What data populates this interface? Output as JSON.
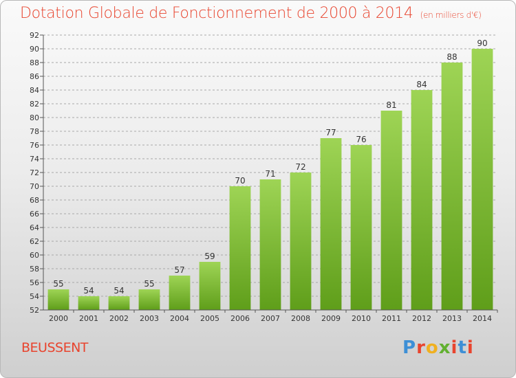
{
  "header": {
    "title": "Dotation Globale de Fonctionnement de 2000 à 2014",
    "unit": "(en milliers d'€)"
  },
  "footer": {
    "commune": "BEUSSENT",
    "logo_text": "Proxiti"
  },
  "colors": {
    "title": "#e8442e",
    "bar_light": "#9ed455",
    "bar_dark": "#5f9e1a",
    "grid": "#a8a8a8",
    "logo": [
      "#3d8fd6",
      "#e8442e",
      "#f0b020",
      "#62b030",
      "#e8442e",
      "#3d8fd6",
      "#e8442e"
    ]
  },
  "chart_data": {
    "type": "bar",
    "title": "Dotation Globale de Fonctionnement de 2000 à 2014",
    "subtitle": "(en milliers d'€)",
    "xlabel": "",
    "ylabel": "",
    "categories": [
      "2000",
      "2001",
      "2002",
      "2003",
      "2004",
      "2005",
      "2006",
      "2007",
      "2008",
      "2009",
      "2010",
      "2011",
      "2012",
      "2013",
      "2014"
    ],
    "values": [
      55,
      54,
      54,
      55,
      57,
      59,
      70,
      71,
      72,
      77,
      76,
      81,
      84,
      88,
      90
    ],
    "ylim": [
      52,
      92
    ],
    "yticks": [
      52,
      54,
      56,
      58,
      60,
      62,
      64,
      66,
      68,
      70,
      72,
      74,
      76,
      78,
      80,
      82,
      84,
      86,
      88,
      90,
      92
    ],
    "grid": true,
    "data_labels": true
  }
}
